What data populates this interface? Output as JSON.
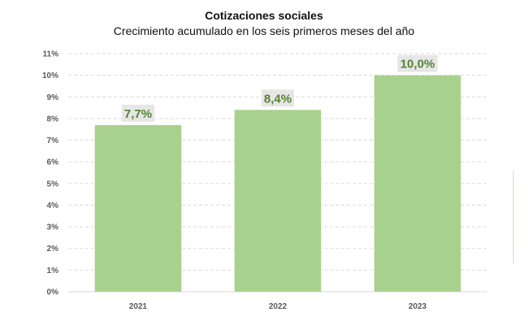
{
  "chart_data": {
    "type": "bar",
    "title": "Cotizaciones sociales",
    "subtitle": "Crecimiento acumulado en los seis primeros meses del año",
    "categories": [
      "2021",
      "2022",
      "2023"
    ],
    "values": [
      7.7,
      8.4,
      10.0
    ],
    "data_labels": [
      "7,7%",
      "8,4%",
      "10,0%"
    ],
    "y_ticks": [
      "0%",
      "1%",
      "2%",
      "3%",
      "4%",
      "5%",
      "6%",
      "7%",
      "8%",
      "9%",
      "10%",
      "11%"
    ],
    "ylim": [
      0,
      11
    ],
    "xlabel": "",
    "ylabel": "",
    "grid": true,
    "bar_color": "#a9d18e",
    "label_color": "#548235",
    "label_bg": "#e7e6e6",
    "grid_color": "#d9d9d9"
  }
}
